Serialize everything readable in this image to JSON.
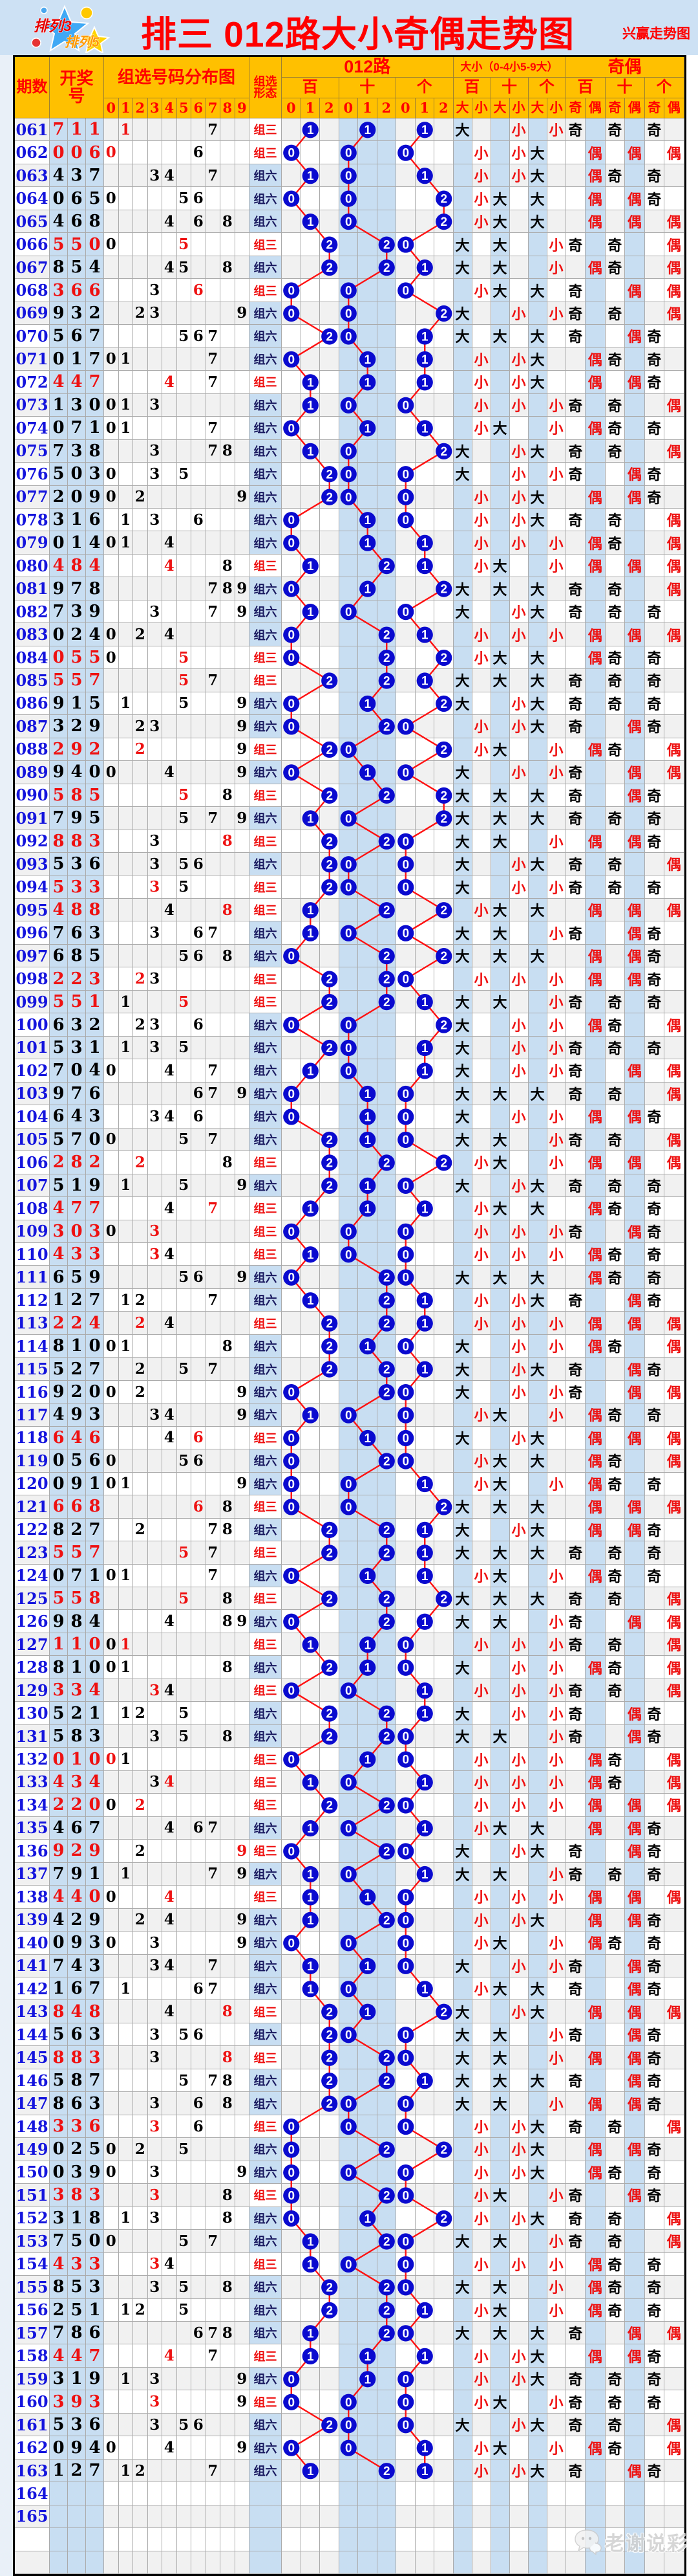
{
  "page": {
    "title": "排三 012路大小奇偶走势图",
    "watermark_top_right": "兴赢走势图",
    "footer_watermark": "老谢说彩",
    "logo": {
      "line1": "排列3",
      "line2": "排列5"
    }
  },
  "header": {
    "period": "期数",
    "draw_lines": [
      "开奖",
      "号"
    ],
    "dist_title": "组选号码分布图",
    "dist_digits": [
      "0",
      "1",
      "2",
      "3",
      "4",
      "5",
      "6",
      "7",
      "8",
      "9"
    ],
    "form_lines": [
      "组选",
      "形态"
    ],
    "lu": {
      "title": "012路",
      "positions": [
        "百",
        "十",
        "个"
      ],
      "subs": [
        "0",
        "1",
        "2"
      ]
    },
    "dx": {
      "title": "大小（0-4小5-9大）",
      "positions": [
        "百",
        "十",
        "个"
      ],
      "subs": [
        "大",
        "小"
      ]
    },
    "jo": {
      "title": "奇偶",
      "positions": [
        "百",
        "十",
        "个"
      ],
      "subs": [
        "奇",
        "偶"
      ]
    }
  },
  "labels": {
    "zu3": "组三",
    "zu6": "组六",
    "big": "大",
    "small": "小",
    "odd": "奇",
    "even": "偶"
  },
  "colors": {
    "page_band": "#cde1f4",
    "header_bg": "#ffc000",
    "header_text": "#ff0000",
    "band_blue": "#c8def2",
    "row_alt": "#f1f1f1",
    "row_white": "#ffffff",
    "period_blue": "#1414dd",
    "red": "#ee1111",
    "black": "#000000",
    "zu6_navy": "#1a1a60",
    "circle_fill": "#0a0acf",
    "circle_text": "#ffffff",
    "line_red": "#ff1111",
    "grid": "#ababab"
  },
  "chart_data": {
    "type": "table",
    "title": "排三 012路大小奇偶走势图",
    "big_small_rule": "0-4小5-9大",
    "periods_empty": [
      "164",
      "165"
    ],
    "trailing_empty_rows": 2,
    "rows": [
      {
        "p": "061",
        "n": [
          7,
          1,
          1
        ]
      },
      {
        "p": "062",
        "n": [
          0,
          0,
          6
        ]
      },
      {
        "p": "063",
        "n": [
          4,
          3,
          7
        ]
      },
      {
        "p": "064",
        "n": [
          0,
          6,
          5
        ]
      },
      {
        "p": "065",
        "n": [
          4,
          6,
          8
        ]
      },
      {
        "p": "066",
        "n": [
          5,
          5,
          0
        ]
      },
      {
        "p": "067",
        "n": [
          8,
          5,
          4
        ]
      },
      {
        "p": "068",
        "n": [
          3,
          6,
          6
        ]
      },
      {
        "p": "069",
        "n": [
          9,
          3,
          2
        ]
      },
      {
        "p": "070",
        "n": [
          5,
          6,
          7
        ]
      },
      {
        "p": "071",
        "n": [
          0,
          1,
          7
        ]
      },
      {
        "p": "072",
        "n": [
          4,
          4,
          7
        ]
      },
      {
        "p": "073",
        "n": [
          1,
          3,
          0
        ]
      },
      {
        "p": "074",
        "n": [
          0,
          7,
          1
        ]
      },
      {
        "p": "075",
        "n": [
          7,
          3,
          8
        ]
      },
      {
        "p": "076",
        "n": [
          5,
          0,
          3
        ]
      },
      {
        "p": "077",
        "n": [
          2,
          0,
          9
        ]
      },
      {
        "p": "078",
        "n": [
          3,
          1,
          6
        ]
      },
      {
        "p": "079",
        "n": [
          0,
          1,
          4
        ]
      },
      {
        "p": "080",
        "n": [
          4,
          8,
          4
        ]
      },
      {
        "p": "081",
        "n": [
          9,
          7,
          8
        ]
      },
      {
        "p": "082",
        "n": [
          7,
          3,
          9
        ]
      },
      {
        "p": "083",
        "n": [
          0,
          2,
          4
        ]
      },
      {
        "p": "084",
        "n": [
          0,
          5,
          5
        ]
      },
      {
        "p": "085",
        "n": [
          5,
          5,
          7
        ]
      },
      {
        "p": "086",
        "n": [
          9,
          1,
          5
        ]
      },
      {
        "p": "087",
        "n": [
          3,
          2,
          9
        ]
      },
      {
        "p": "088",
        "n": [
          2,
          9,
          2
        ]
      },
      {
        "p": "089",
        "n": [
          9,
          4,
          0
        ]
      },
      {
        "p": "090",
        "n": [
          5,
          8,
          5
        ]
      },
      {
        "p": "091",
        "n": [
          7,
          9,
          5
        ]
      },
      {
        "p": "092",
        "n": [
          8,
          8,
          3
        ]
      },
      {
        "p": "093",
        "n": [
          5,
          3,
          6
        ]
      },
      {
        "p": "094",
        "n": [
          5,
          3,
          3
        ]
      },
      {
        "p": "095",
        "n": [
          4,
          8,
          8
        ]
      },
      {
        "p": "096",
        "n": [
          7,
          6,
          3
        ]
      },
      {
        "p": "097",
        "n": [
          6,
          8,
          5
        ]
      },
      {
        "p": "098",
        "n": [
          2,
          2,
          3
        ]
      },
      {
        "p": "099",
        "n": [
          5,
          5,
          1
        ]
      },
      {
        "p": "100",
        "n": [
          6,
          3,
          2
        ]
      },
      {
        "p": "101",
        "n": [
          5,
          3,
          1
        ]
      },
      {
        "p": "102",
        "n": [
          7,
          0,
          4
        ]
      },
      {
        "p": "103",
        "n": [
          9,
          7,
          6
        ]
      },
      {
        "p": "104",
        "n": [
          6,
          4,
          3
        ]
      },
      {
        "p": "105",
        "n": [
          5,
          7,
          0
        ]
      },
      {
        "p": "106",
        "n": [
          2,
          8,
          2
        ]
      },
      {
        "p": "107",
        "n": [
          5,
          1,
          9
        ]
      },
      {
        "p": "108",
        "n": [
          4,
          7,
          7
        ]
      },
      {
        "p": "109",
        "n": [
          3,
          0,
          3
        ]
      },
      {
        "p": "110",
        "n": [
          4,
          3,
          3
        ]
      },
      {
        "p": "111",
        "n": [
          6,
          5,
          9
        ]
      },
      {
        "p": "112",
        "n": [
          1,
          2,
          7
        ]
      },
      {
        "p": "113",
        "n": [
          2,
          2,
          4
        ]
      },
      {
        "p": "114",
        "n": [
          8,
          1,
          0
        ]
      },
      {
        "p": "115",
        "n": [
          5,
          2,
          7
        ]
      },
      {
        "p": "116",
        "n": [
          9,
          2,
          0
        ]
      },
      {
        "p": "117",
        "n": [
          4,
          9,
          3
        ]
      },
      {
        "p": "118",
        "n": [
          6,
          4,
          6
        ]
      },
      {
        "p": "119",
        "n": [
          0,
          5,
          6
        ]
      },
      {
        "p": "120",
        "n": [
          0,
          9,
          1
        ]
      },
      {
        "p": "121",
        "n": [
          6,
          6,
          8
        ]
      },
      {
        "p": "122",
        "n": [
          8,
          2,
          7
        ]
      },
      {
        "p": "123",
        "n": [
          5,
          5,
          7
        ]
      },
      {
        "p": "124",
        "n": [
          0,
          7,
          1
        ]
      },
      {
        "p": "125",
        "n": [
          5,
          5,
          8
        ]
      },
      {
        "p": "126",
        "n": [
          9,
          8,
          4
        ]
      },
      {
        "p": "127",
        "n": [
          1,
          1,
          0
        ]
      },
      {
        "p": "128",
        "n": [
          8,
          1,
          0
        ]
      },
      {
        "p": "129",
        "n": [
          3,
          3,
          4
        ]
      },
      {
        "p": "130",
        "n": [
          5,
          2,
          1
        ]
      },
      {
        "p": "131",
        "n": [
          5,
          8,
          3
        ]
      },
      {
        "p": "132",
        "n": [
          0,
          1,
          0
        ]
      },
      {
        "p": "133",
        "n": [
          4,
          3,
          4
        ]
      },
      {
        "p": "134",
        "n": [
          2,
          2,
          0
        ]
      },
      {
        "p": "135",
        "n": [
          4,
          6,
          7
        ]
      },
      {
        "p": "136",
        "n": [
          9,
          2,
          9
        ]
      },
      {
        "p": "137",
        "n": [
          7,
          9,
          1
        ]
      },
      {
        "p": "138",
        "n": [
          4,
          4,
          0
        ]
      },
      {
        "p": "139",
        "n": [
          4,
          2,
          9
        ]
      },
      {
        "p": "140",
        "n": [
          0,
          9,
          3
        ]
      },
      {
        "p": "141",
        "n": [
          7,
          4,
          3
        ]
      },
      {
        "p": "142",
        "n": [
          1,
          6,
          7
        ]
      },
      {
        "p": "143",
        "n": [
          8,
          4,
          8
        ]
      },
      {
        "p": "144",
        "n": [
          5,
          6,
          3
        ]
      },
      {
        "p": "145",
        "n": [
          8,
          8,
          3
        ]
      },
      {
        "p": "146",
        "n": [
          5,
          8,
          7
        ]
      },
      {
        "p": "147",
        "n": [
          8,
          6,
          3
        ]
      },
      {
        "p": "148",
        "n": [
          3,
          3,
          6
        ]
      },
      {
        "p": "149",
        "n": [
          0,
          2,
          5
        ]
      },
      {
        "p": "150",
        "n": [
          0,
          3,
          9
        ]
      },
      {
        "p": "151",
        "n": [
          3,
          8,
          3
        ]
      },
      {
        "p": "152",
        "n": [
          3,
          1,
          8
        ]
      },
      {
        "p": "153",
        "n": [
          7,
          5,
          0
        ]
      },
      {
        "p": "154",
        "n": [
          4,
          3,
          3
        ]
      },
      {
        "p": "155",
        "n": [
          8,
          5,
          3
        ]
      },
      {
        "p": "156",
        "n": [
          2,
          5,
          1
        ]
      },
      {
        "p": "157",
        "n": [
          7,
          8,
          6
        ]
      },
      {
        "p": "158",
        "n": [
          4,
          4,
          7
        ]
      },
      {
        "p": "159",
        "n": [
          3,
          1,
          9
        ]
      },
      {
        "p": "160",
        "n": [
          3,
          9,
          3
        ]
      },
      {
        "p": "161",
        "n": [
          5,
          3,
          6
        ]
      },
      {
        "p": "162",
        "n": [
          0,
          9,
          4
        ]
      },
      {
        "p": "163",
        "n": [
          1,
          2,
          7
        ]
      }
    ]
  }
}
